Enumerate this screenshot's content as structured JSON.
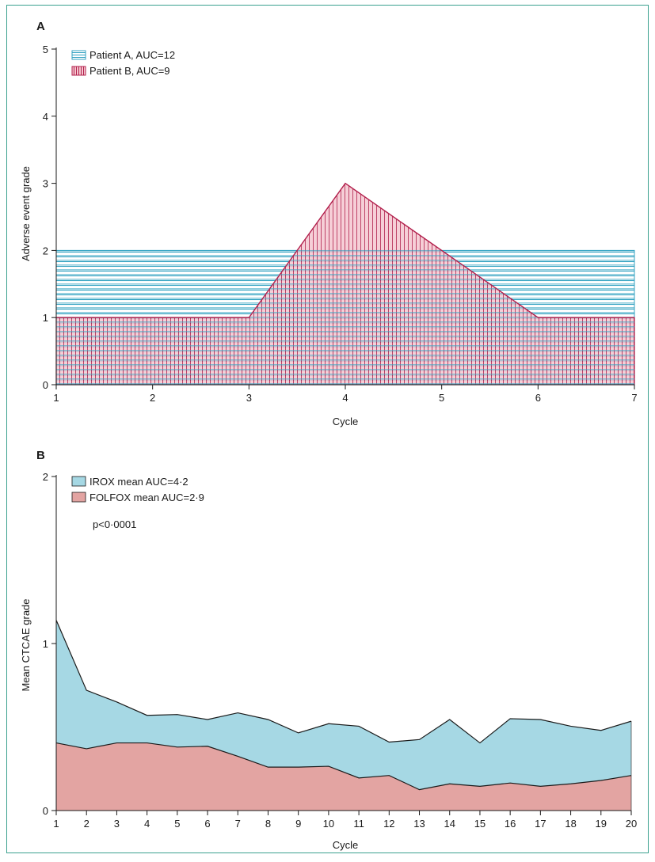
{
  "colors": {
    "frame": "#3aa08e",
    "patient_a": "#34a3c2",
    "patient_b": "#b3224e",
    "patient_b_fill": "#f5c7d0",
    "irox_fill": "#a6d8e4",
    "folfox_fill": "#e3a4a2",
    "axis": "#1a1a1a"
  },
  "chart_data": [
    {
      "panel": "A",
      "type": "area",
      "title": "",
      "xlabel": "Cycle",
      "ylabel": "Adverse event grade",
      "xlim": [
        1,
        7
      ],
      "ylim": [
        0,
        5
      ],
      "x_ticks": [
        "1",
        "2",
        "3",
        "4",
        "5",
        "6",
        "7"
      ],
      "y_ticks": [
        "0",
        "1",
        "2",
        "3",
        "4",
        "5"
      ],
      "legend_position": "top-left",
      "series": [
        {
          "name": "Patient A, AUC=12",
          "pattern": "horizontal-hatch",
          "x": [
            1,
            7
          ],
          "y": [
            2,
            2
          ]
        },
        {
          "name": "Patient B, AUC=9",
          "pattern": "vertical-hatch",
          "x": [
            1,
            3,
            4,
            6,
            7
          ],
          "y": [
            1,
            1,
            3,
            1,
            1
          ]
        }
      ]
    },
    {
      "panel": "B",
      "type": "area",
      "title": "",
      "xlabel": "Cycle",
      "ylabel": "Mean CTCAE grade",
      "xlim": [
        1,
        20
      ],
      "ylim": [
        0,
        2
      ],
      "x_ticks": [
        "1",
        "2",
        "3",
        "4",
        "5",
        "6",
        "7",
        "8",
        "9",
        "10",
        "11",
        "12",
        "13",
        "14",
        "15",
        "16",
        "17",
        "18",
        "19",
        "20"
      ],
      "y_ticks": [
        "0",
        "1",
        "2"
      ],
      "legend_position": "top-left",
      "annotation": "p<0·0001",
      "x": [
        1,
        2,
        3,
        4,
        5,
        6,
        7,
        8,
        9,
        10,
        11,
        12,
        13,
        14,
        15,
        16,
        17,
        18,
        19,
        20
      ],
      "series": [
        {
          "name": "IROX mean AUC=4·2",
          "values": [
            1.14,
            0.72,
            0.65,
            0.57,
            0.575,
            0.545,
            0.585,
            0.545,
            0.465,
            0.52,
            0.505,
            0.41,
            0.425,
            0.545,
            0.405,
            0.55,
            0.545,
            0.505,
            0.48,
            0.535
          ]
        },
        {
          "name": "FOLFOX mean AUC=2·9",
          "values": [
            0.405,
            0.37,
            0.405,
            0.405,
            0.38,
            0.385,
            0.325,
            0.26,
            0.26,
            0.265,
            0.195,
            0.21,
            0.125,
            0.16,
            0.145,
            0.165,
            0.145,
            0.16,
            0.18,
            0.21
          ]
        }
      ]
    }
  ]
}
